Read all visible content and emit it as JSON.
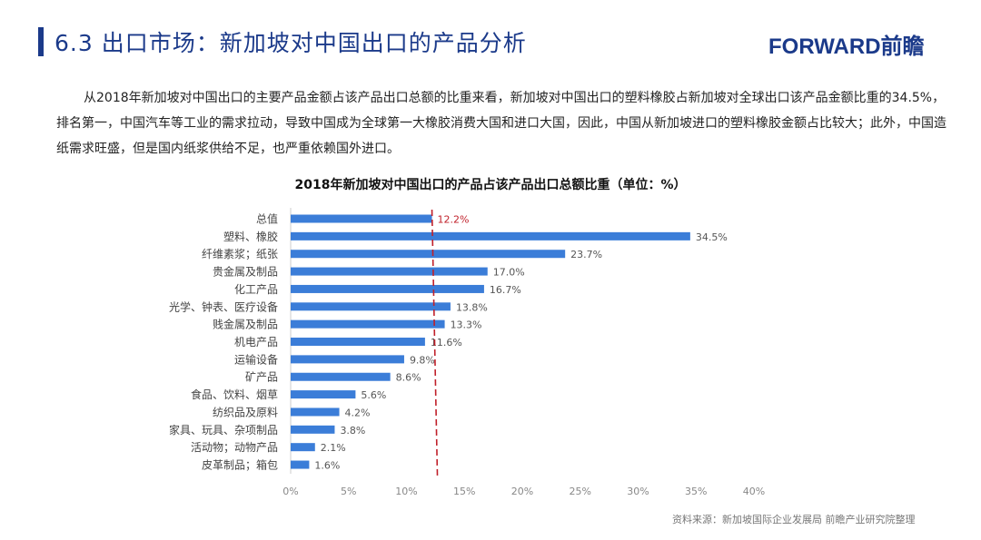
{
  "header": {
    "title": "6.3 出口市场：新加坡对中国出口的产品分析",
    "logo": "FORWARD前瞻"
  },
  "paragraph": "从2018年新加坡对中国出口的主要产品金额占该产品出口总额的比重来看，新加坡对中国出口的塑料橡胶占新加坡对全球出口该产品金额比重的34.5%，排名第一，中国汽车等工业的需求拉动，导致中国成为全球第一大橡胶消费大国和进口大国，因此，中国从新加坡进口的塑料橡胶金额占比较大；此外，中国造纸需求旺盛，但是国内纸浆供给不足，也严重依赖国外进口。",
  "source": "资料来源：新加坡国际企业发展局  前瞻产业研究院整理",
  "chart_data": {
    "type": "bar",
    "orientation": "horizontal",
    "title": "2018年新加坡对中国出口的产品占该产品出口总额比重（单位：%）",
    "categories": [
      "总值",
      "塑料、橡胶",
      "纤维素浆；纸张",
      "贵金属及制品",
      "化工产品",
      "光学、钟表、医疗设备",
      "贱金属及制品",
      "机电产品",
      "运输设备",
      "矿产品",
      "食品、饮料、烟草",
      "纺织品及原料",
      "家具、玩具、杂项制品",
      "活动物；动物产品",
      "皮革制品；箱包"
    ],
    "values": [
      12.2,
      34.5,
      23.7,
      17.0,
      16.7,
      13.8,
      13.3,
      11.6,
      9.8,
      8.6,
      5.6,
      4.2,
      3.8,
      2.1,
      1.6
    ],
    "data_labels": [
      "12.2%",
      "34.5%",
      "23.7%",
      "17.0%",
      "16.7%",
      "13.8%",
      "13.3%",
      "11.6%",
      "9.8%",
      "8.6%",
      "5.6%",
      "4.2%",
      "3.8%",
      "2.1%",
      "1.6%"
    ],
    "xlim": [
      0,
      40
    ],
    "xticks": [
      "0%",
      "5%",
      "10%",
      "15%",
      "20%",
      "25%",
      "30%",
      "35%",
      "40%"
    ],
    "reference_line": {
      "value": 12.2,
      "style": "dashed",
      "color": "#c0202a"
    },
    "bar_color": "#3b7dd8",
    "highlight_label_color": "#c0202a",
    "grid": false
  }
}
